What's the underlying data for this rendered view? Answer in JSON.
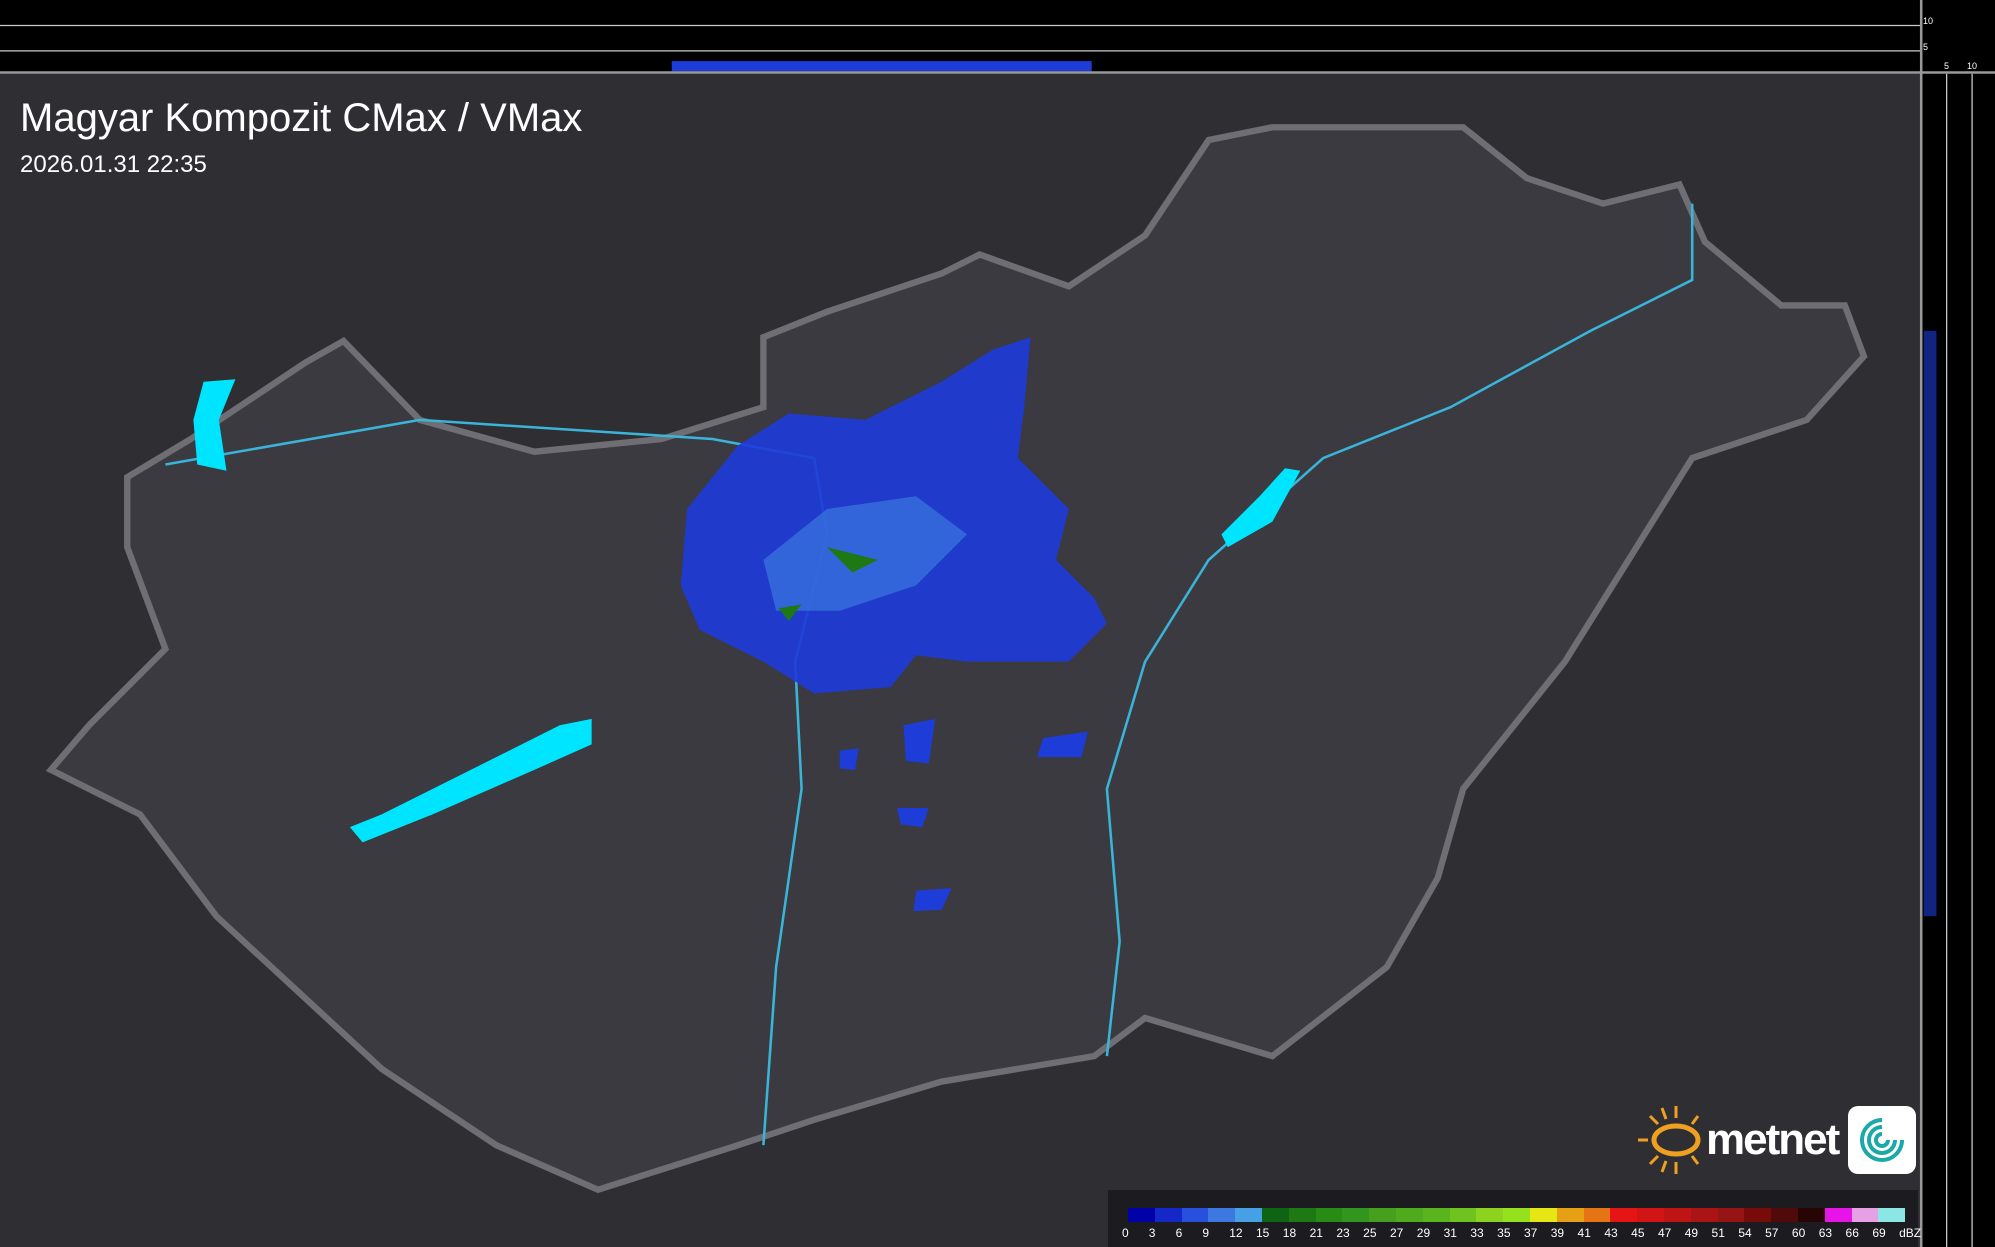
{
  "header": {
    "title": "Magyar Kompozit CMax / VMax",
    "timestamp": "2026.01.31 22:35"
  },
  "profile_axes": {
    "top_ticks": [
      "10",
      "5"
    ],
    "right_ticks": [
      "5",
      "10"
    ]
  },
  "legend": {
    "unit": "dBZ",
    "labels": [
      "0",
      "3",
      "6",
      "9",
      "12",
      "15",
      "18",
      "21",
      "23",
      "25",
      "27",
      "29",
      "31",
      "33",
      "35",
      "37",
      "39",
      "41",
      "43",
      "45",
      "47",
      "49",
      "51",
      "54",
      "57",
      "60",
      "63",
      "66",
      "69"
    ],
    "colors": [
      "#000a6e",
      "#0000a8",
      "#1428c8",
      "#2850dc",
      "#3c78e0",
      "#46a0e6",
      "#0f6414",
      "#1e7814",
      "#288c14",
      "#32961e",
      "#46a01e",
      "#50aa1e",
      "#5ab41e",
      "#6ec31e",
      "#8cd21e",
      "#96e11e",
      "#e6e614",
      "#e6a014",
      "#e67314",
      "#e61414",
      "#d21414",
      "#be1414",
      "#aa1414",
      "#961414",
      "#780a0a",
      "#500a0a",
      "#280505",
      "#e614e6",
      "#e6a0e6",
      "#8ce6e6"
    ]
  },
  "brand": {
    "name": "metnet",
    "accent": "#f0a020"
  },
  "colors": {
    "background": "#2e2e33",
    "country": "#3a3a40",
    "border": "#6e6e74",
    "rivers": "#3ab4d8",
    "lakes": "#00e5ff",
    "radar": "#1e3cd8"
  }
}
